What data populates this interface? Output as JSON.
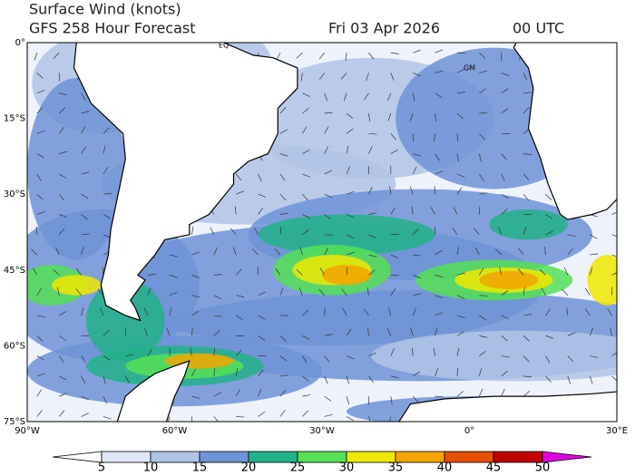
{
  "header": {
    "title": "Surface Wind (knots)",
    "subtitle": "GFS 258 Hour Forecast",
    "date": "Fri 03 Apr 2026",
    "time": "00 UTC"
  },
  "map": {
    "lat_labels": [
      "0°",
      "15°S",
      "30°S",
      "45°S",
      "60°S",
      "75°S"
    ],
    "lon_labels": [
      "90°W",
      "60°W",
      "30°W",
      "0°",
      "30°E"
    ],
    "place_labels": [
      "EQ",
      "GM"
    ]
  },
  "colorbar": {
    "ticks": [
      5,
      10,
      15,
      20,
      25,
      30,
      35,
      40,
      45,
      50
    ],
    "colors": [
      "#ffffff",
      "#dfe6f5",
      "#b0c4e6",
      "#6f93d6",
      "#22b28a",
      "#55e055",
      "#f0e800",
      "#f5a500",
      "#e65000",
      "#c00000",
      "#e000e0"
    ]
  }
}
